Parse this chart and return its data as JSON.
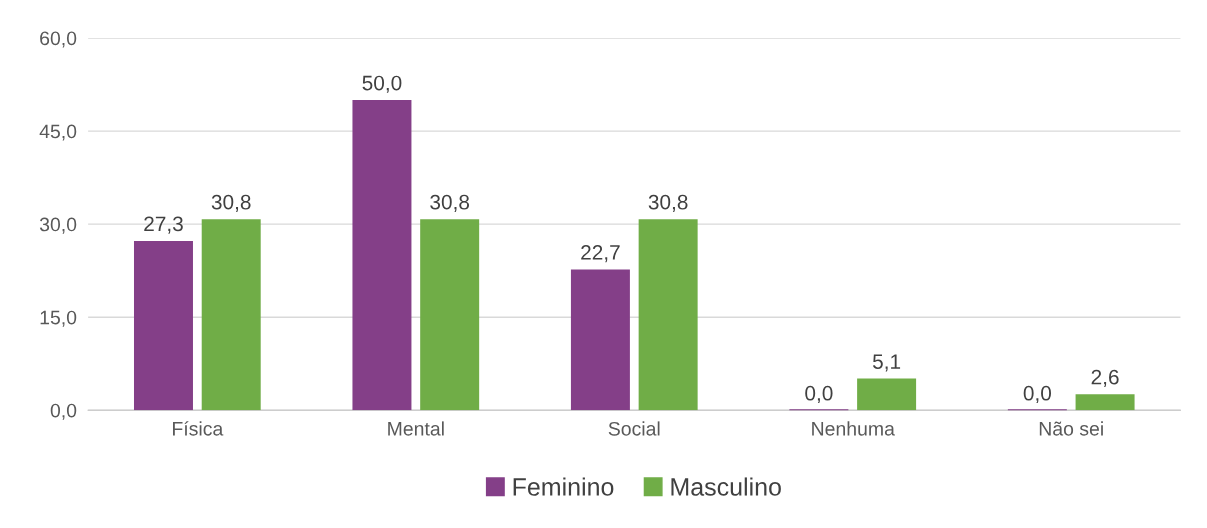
{
  "chart_data": {
    "type": "bar",
    "categories": [
      "Física",
      "Mental",
      "Social",
      "Nenhuma",
      "Não sei"
    ],
    "series": [
      {
        "name": "Feminino",
        "color": "#843f88",
        "values": [
          27.3,
          50.0,
          22.7,
          0.0,
          0.0
        ],
        "value_labels": [
          "27,3",
          "50,0",
          "22,7",
          "0,0",
          "0,0"
        ]
      },
      {
        "name": "Masculino",
        "color": "#70ad47",
        "values": [
          30.8,
          30.8,
          30.8,
          5.1,
          2.6
        ],
        "value_labels": [
          "30,8",
          "30,8",
          "30,8",
          "5,1",
          "2,6"
        ]
      }
    ],
    "ylim": [
      0,
      60
    ],
    "yticks": [
      {
        "value": 0,
        "label": "0,0"
      },
      {
        "value": 15,
        "label": "15,0"
      },
      {
        "value": 30,
        "label": "30,0"
      },
      {
        "value": 45,
        "label": "45,0"
      },
      {
        "value": 60,
        "label": "60,0"
      }
    ],
    "grid": "y",
    "legend": "bottom"
  }
}
